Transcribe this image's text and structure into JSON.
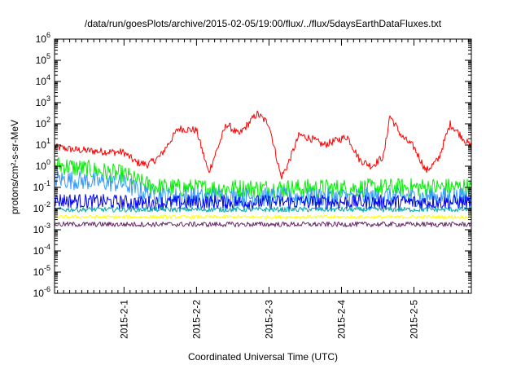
{
  "chart_data": {
    "type": "line",
    "title": "/data/run/goesPlots/archive/2015-02-05/19:00/flux/../flux/5daysEarthDataFluxes.txt",
    "xlabel": "Coordinated Universal Time (UTC)",
    "ylabel": "protons/cm²-s-sr-MeV",
    "yscale": "log",
    "ylim": [
      1e-06,
      1000000.0
    ],
    "xlim": [
      "2015-01-31T01:00",
      "2015-02-05T19:00"
    ],
    "x_ticks": [
      "2015-2-1",
      "2015-2-2",
      "2015-2-3",
      "2015-2-4",
      "2015-2-5"
    ],
    "y_ticks": [
      {
        "base": "10",
        "exp": "-6"
      },
      {
        "base": "10",
        "exp": "-5"
      },
      {
        "base": "10",
        "exp": "-4"
      },
      {
        "base": "10",
        "exp": "-3"
      },
      {
        "base": "10",
        "exp": "-2"
      },
      {
        "base": "10",
        "exp": "-1"
      },
      {
        "base": "10",
        "exp": "0"
      },
      {
        "base": "10",
        "exp": "1"
      },
      {
        "base": "10",
        "exp": "2"
      },
      {
        "base": "10",
        "exp": "3"
      },
      {
        "base": "10",
        "exp": "4"
      },
      {
        "base": "10",
        "exp": "5"
      },
      {
        "base": "10",
        "exp": "6"
      }
    ],
    "grid": false,
    "legend": "none",
    "series": [
      {
        "color": "#ff0000",
        "noise": 0.18,
        "x": [
          "2015-01-31T01:00",
          "2015-01-31T08:00",
          "2015-01-31T16:00",
          "2015-02-01T00:00",
          "2015-02-01T04:00",
          "2015-02-01T08:00",
          "2015-02-01T12:00",
          "2015-02-01T18:00",
          "2015-02-02T00:00",
          "2015-02-02T04:00",
          "2015-02-02T06:00",
          "2015-02-02T10:00",
          "2015-02-02T14:00",
          "2015-02-02T20:00",
          "2015-02-03T00:00",
          "2015-02-03T04:00",
          "2015-02-03T06:00",
          "2015-02-03T10:00",
          "2015-02-03T14:00",
          "2015-02-03T18:00",
          "2015-02-04T02:00",
          "2015-02-04T06:00",
          "2015-02-04T10:00",
          "2015-02-04T14:00",
          "2015-02-04T16:00",
          "2015-02-04T20:00",
          "2015-02-05T00:00",
          "2015-02-05T04:00",
          "2015-02-05T08:00",
          "2015-02-05T12:00",
          "2015-02-05T19:00"
        ],
        "y": [
          8,
          6,
          5,
          4.5,
          1.5,
          1.2,
          3,
          60,
          50,
          0.5,
          3,
          100,
          30,
          300,
          100,
          0.3,
          1,
          30,
          20,
          10,
          25,
          2,
          1,
          3,
          250,
          25,
          8,
          0.6,
          2,
          100,
          8
        ]
      },
      {
        "color": "#00ee00",
        "noise": 0.45,
        "x": [
          "2015-01-31T01:00",
          "2015-01-31T12:00",
          "2015-02-01T00:00",
          "2015-02-01T06:00",
          "2015-02-01T12:00",
          "2015-02-02T00:00",
          "2015-02-03T00:00",
          "2015-02-04T00:00",
          "2015-02-05T00:00",
          "2015-02-05T19:00"
        ],
        "y": [
          1.2,
          0.7,
          0.4,
          0.15,
          0.1,
          0.09,
          0.09,
          0.09,
          0.1,
          0.1
        ]
      },
      {
        "color": "#3399ff",
        "noise": 0.45,
        "x": [
          "2015-01-31T01:00",
          "2015-01-31T12:00",
          "2015-02-01T00:00",
          "2015-02-01T06:00",
          "2015-02-01T12:00",
          "2015-02-02T00:00",
          "2015-02-03T00:00",
          "2015-02-04T00:00",
          "2015-02-05T00:00",
          "2015-02-05T19:00"
        ],
        "y": [
          0.25,
          0.2,
          0.15,
          0.06,
          0.04,
          0.035,
          0.035,
          0.035,
          0.035,
          0.035
        ]
      },
      {
        "color": "#0000ee",
        "noise": 0.35,
        "x": [
          "2015-01-31T01:00",
          "2015-01-31T12:00",
          "2015-02-01T00:00",
          "2015-02-01T06:00",
          "2015-02-01T12:00",
          "2015-02-02T00:00",
          "2015-02-03T00:00",
          "2015-02-04T00:00",
          "2015-02-05T00:00",
          "2015-02-05T19:00"
        ],
        "y": [
          0.025,
          0.022,
          0.02,
          0.018,
          0.018,
          0.02,
          0.02,
          0.02,
          0.02,
          0.02
        ]
      },
      {
        "color": "#00aaaa",
        "noise": 0.12,
        "x": [
          "2015-01-31T01:00",
          "2015-02-05T19:00"
        ],
        "y": [
          0.009,
          0.009
        ]
      },
      {
        "color": "#ffff00",
        "noise": 0.08,
        "x": [
          "2015-01-31T01:00",
          "2015-02-05T19:00"
        ],
        "y": [
          0.004,
          0.004
        ]
      },
      {
        "color": "#6b2a6b",
        "noise": 0.12,
        "x": [
          "2015-01-31T01:00",
          "2015-02-05T19:00"
        ],
        "y": [
          0.0018,
          0.0018
        ]
      }
    ]
  }
}
